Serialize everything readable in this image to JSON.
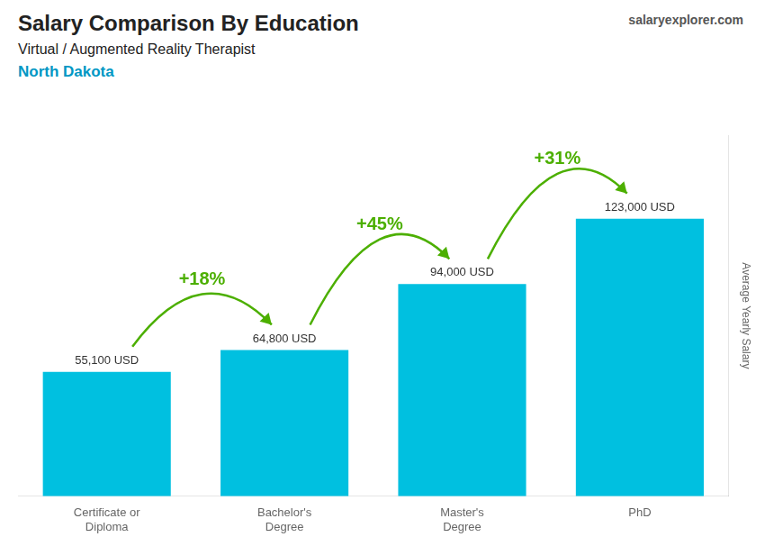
{
  "chart_data": {
    "type": "bar",
    "title": "Salary Comparison By Education",
    "subtitle": "Virtual / Augmented Reality Therapist",
    "location": "North Dakota",
    "brand": "salaryexplorer.com",
    "categories": [
      "Certificate or\nDiploma",
      "Bachelor's\nDegree",
      "Master's\nDegree",
      "PhD"
    ],
    "values": [
      55100,
      64800,
      94000,
      123000
    ],
    "value_labels": [
      "55,100 USD",
      "64,800 USD",
      "94,000 USD",
      "123,000 USD"
    ],
    "data_labels": true,
    "annotations": [
      {
        "text": "+18%",
        "from": "Certificate or\nDiploma",
        "to": "Bachelor's\nDegree"
      },
      {
        "text": "+45%",
        "from": "Bachelor's\nDegree",
        "to": "Master's\nDegree"
      },
      {
        "text": "+31%",
        "from": "Master's\nDegree",
        "to": "PhD"
      }
    ],
    "color": "#00c0e0",
    "ylabel": "Average Yearly Salary",
    "ylim": [
      0,
      160000
    ],
    "tick_labels": "x",
    "grid": false
  }
}
